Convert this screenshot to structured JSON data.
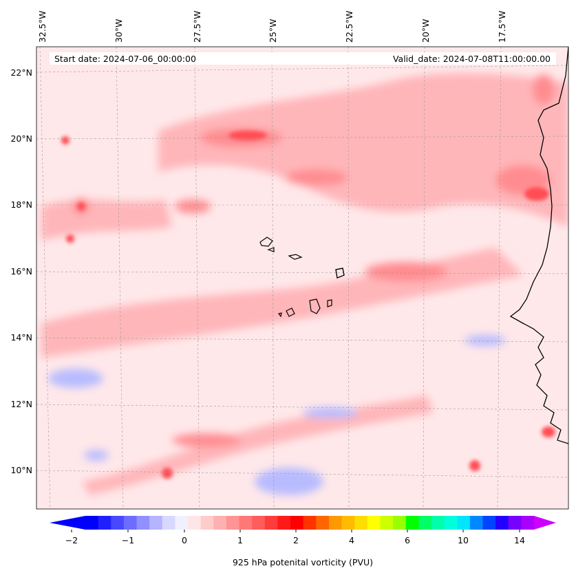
{
  "header": {
    "start_date": "Start date: 2024-07-06_00:00:00",
    "valid_date": "Valid_date: 2024-07-08T11:00:00.00"
  },
  "map": {
    "lon_labels": [
      "32.5°W",
      "30°W",
      "27.5°W",
      "25°W",
      "22.5°W",
      "20°W",
      "17.5°W"
    ],
    "lat_labels": [
      "22°N",
      "20°N",
      "18°N",
      "16°N",
      "14°N",
      "12°N",
      "10°N"
    ],
    "gridlines": true,
    "colors": {
      "background": "#ffe8ea",
      "light_red": "#ffb6b9",
      "mid_red": "#ff8c90",
      "strong_red": "#ff4e55",
      "peak_red": "#ff1e28",
      "light_blue": "#e6e8ff",
      "mid_blue": "#b8bcff",
      "coastline": "#000000"
    }
  },
  "colorbar": {
    "tick_labels": [
      "−2",
      "−1",
      "0",
      "1",
      "2",
      "4",
      "6",
      "10",
      "14"
    ],
    "label": "925 hPa potenital vorticity (PVU)",
    "colors": [
      "#0000ff",
      "#2020ff",
      "#4848ff",
      "#6c6cff",
      "#9090ff",
      "#b4b4ff",
      "#d8d8ff",
      "#f0f0ff",
      "#ffe6e6",
      "#ffcccc",
      "#ffb0b0",
      "#ff9494",
      "#ff7878",
      "#ff5c5c",
      "#ff3c3c",
      "#ff1a1a",
      "#ff0000",
      "#ff3300",
      "#ff6600",
      "#ff9900",
      "#ffbb00",
      "#ffdd00",
      "#ffff00",
      "#ccff00",
      "#99ff00",
      "#00ff00",
      "#00ff66",
      "#00ffaa",
      "#00ffdd",
      "#00e6ff",
      "#0088ff",
      "#0044ff",
      "#2200ff",
      "#7700ff",
      "#aa00ff"
    ],
    "extend_low_color": "#0000ff",
    "extend_high_color": "#cc00ff"
  }
}
